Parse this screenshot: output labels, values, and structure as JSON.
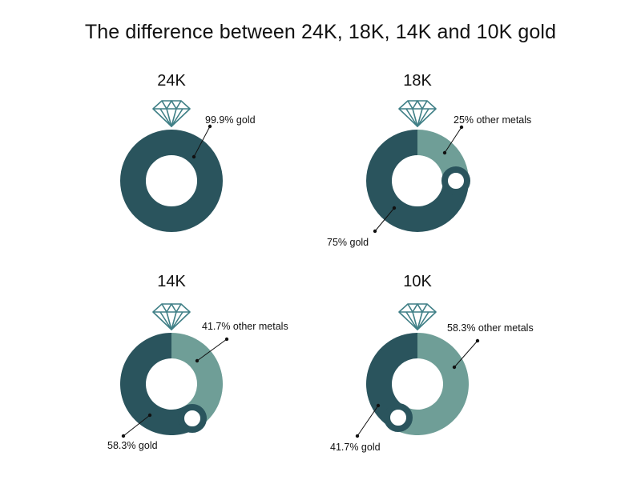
{
  "title": "The difference between 24K, 18K, 14K and 10K gold",
  "colors": {
    "gold": "#2a545d",
    "other_metals": "#6f9e97",
    "diamond": "#3f7f86",
    "stone_ring": "#2a545d"
  },
  "chart_data": [
    {
      "type": "pie",
      "title": "24K",
      "categories": [
        "gold"
      ],
      "values": [
        99.9
      ],
      "labels": [
        "99.9% gold"
      ]
    },
    {
      "type": "pie",
      "title": "18K",
      "categories": [
        "other metals",
        "gold"
      ],
      "values": [
        25,
        75
      ],
      "labels": [
        "25% other metals",
        "75% gold"
      ]
    },
    {
      "type": "pie",
      "title": "14K",
      "categories": [
        "other metals",
        "gold"
      ],
      "values": [
        41.7,
        58.3
      ],
      "labels": [
        "41.7% other metals",
        "58.3% gold"
      ]
    },
    {
      "type": "pie",
      "title": "10K",
      "categories": [
        "other metals",
        "gold"
      ],
      "values": [
        58.3,
        41.7
      ],
      "labels": [
        "58.3% other metals",
        "41.7% gold"
      ]
    }
  ]
}
